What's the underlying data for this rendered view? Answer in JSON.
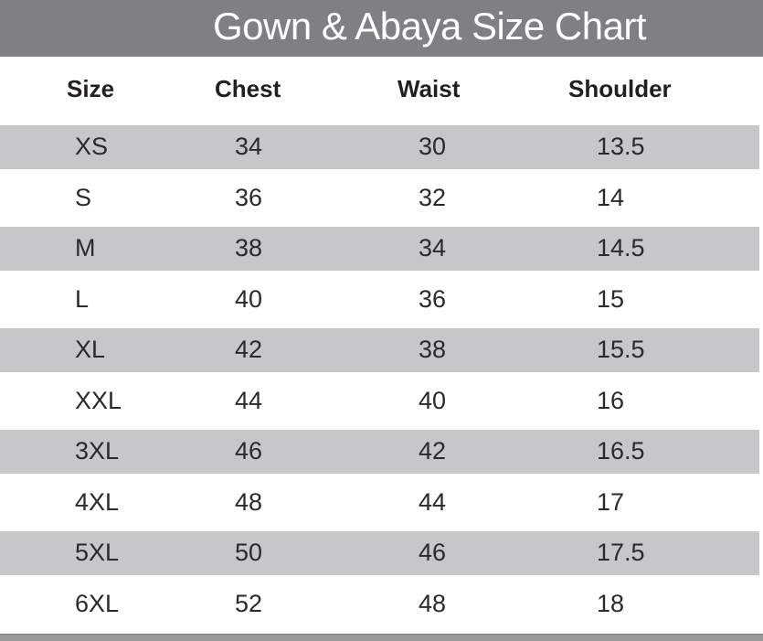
{
  "title": "Gown & Abaya Size Chart",
  "colors": {
    "title_bar": "#7e8083",
    "title_text": "#ffffff",
    "stripe": "#c6c7c9",
    "header_text": "#231f20",
    "cell_text": "#2a2a2c",
    "bottom_bar": "#97999b"
  },
  "table": {
    "headers": [
      "Size",
      "Chest",
      "Waist",
      "Shoulder"
    ],
    "rows": [
      [
        "XS",
        "34",
        "30",
        "13.5"
      ],
      [
        "S",
        "36",
        "32",
        "14"
      ],
      [
        "M",
        "38",
        "34",
        "14.5"
      ],
      [
        "L",
        "40",
        "36",
        "15"
      ],
      [
        "XL",
        "42",
        "38",
        "15.5"
      ],
      [
        "XXL",
        "44",
        "40",
        "16"
      ],
      [
        "3XL",
        "46",
        "42",
        "16.5"
      ],
      [
        "4XL",
        "48",
        "44",
        "17"
      ],
      [
        "5XL",
        "50",
        "46",
        "17.5"
      ],
      [
        "6XL",
        "52",
        "48",
        "18"
      ]
    ]
  },
  "chart_data": {
    "type": "table",
    "title": "Gown & Abaya Size Chart",
    "columns": [
      "Size",
      "Chest",
      "Waist",
      "Shoulder"
    ],
    "rows": [
      [
        "XS",
        34,
        30,
        13.5
      ],
      [
        "S",
        36,
        32,
        14
      ],
      [
        "M",
        38,
        34,
        14.5
      ],
      [
        "L",
        40,
        36,
        15
      ],
      [
        "XL",
        42,
        38,
        15.5
      ],
      [
        "XXL",
        44,
        40,
        16
      ],
      [
        "3XL",
        46,
        42,
        16.5
      ],
      [
        "4XL",
        48,
        44,
        17
      ],
      [
        "5XL",
        50,
        46,
        17.5
      ],
      [
        "6XL",
        52,
        48,
        18
      ]
    ],
    "layout_hints": {
      "striped_rows": "odd data rows (XS, M, XL, 3XL, 5XL) have light gray background",
      "alignment": "all columns left-aligned",
      "title_bar": "full-width medium gray band with white title text",
      "footer": "thin gray bar across the bottom"
    }
  }
}
